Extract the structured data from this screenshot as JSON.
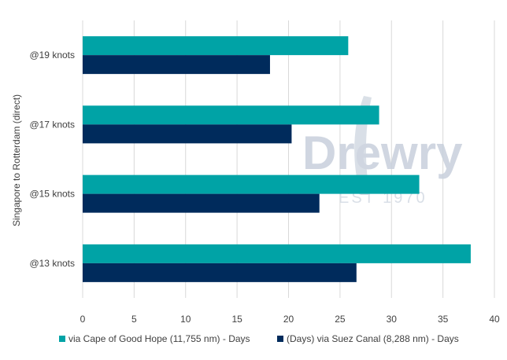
{
  "chart_data": {
    "type": "bar",
    "orientation": "horizontal",
    "title": "",
    "xlabel": "",
    "ylabel": "Singapore to Rotterdam (direct)",
    "categories": [
      "@19 knots",
      "@17 knots",
      "@15 knots",
      "@13 knots"
    ],
    "series": [
      {
        "name": "via Cape of Good Hope (11,755 nm) - Days",
        "color": "#00A3A6",
        "values": [
          25.8,
          28.8,
          32.7,
          37.7
        ]
      },
      {
        "name": "(Days) via Suez Canal (8,288 nm) - Days",
        "color": "#002B5C",
        "values": [
          18.2,
          20.3,
          23.0,
          26.6
        ]
      }
    ],
    "xlim": [
      0,
      40
    ],
    "xticks": [
      0,
      5,
      10,
      15,
      20,
      25,
      30,
      35,
      40
    ],
    "grid": true,
    "legend": "bottom"
  },
  "watermark": {
    "brand": "Drewry",
    "tagline": "EST 1970",
    "color": "#C8D0DC"
  }
}
